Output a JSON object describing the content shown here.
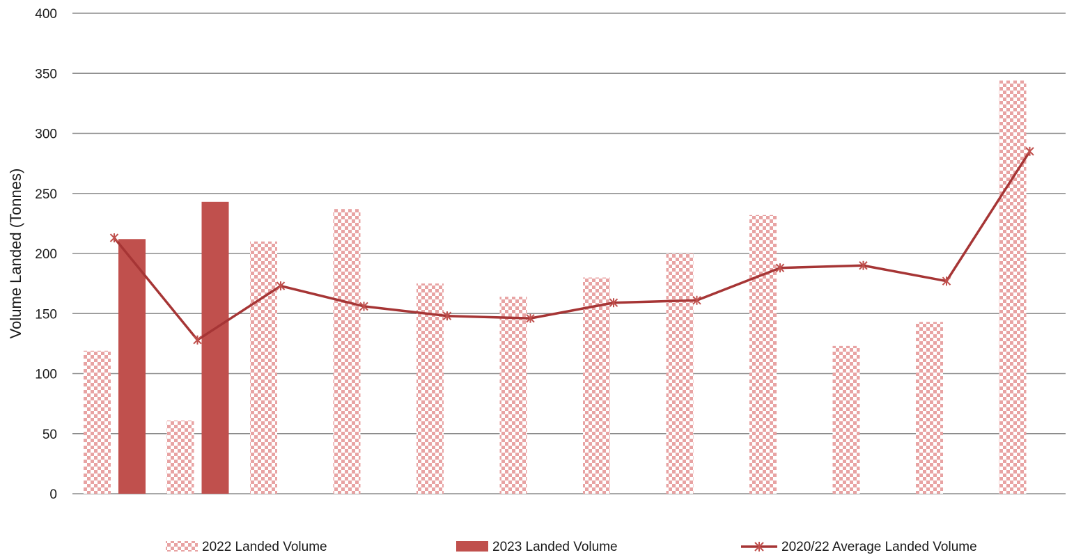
{
  "chart_data": {
    "type": "bar",
    "title": "",
    "xlabel": "",
    "ylabel": "Volume Landed (Tonnes)",
    "ylim": [
      0,
      400
    ],
    "yticks": [
      0,
      50,
      100,
      150,
      200,
      250,
      300,
      350,
      400
    ],
    "grid": true,
    "legend_position": "bottom",
    "categories": [
      "",
      "",
      "",
      "",
      "",
      "",
      "",
      "",
      "",
      "",
      "",
      ""
    ],
    "series": [
      {
        "name": "2022  Landed Volume",
        "kind": "bar",
        "pattern": "checkerboard",
        "color": "#e8a3a3",
        "values": [
          119,
          61,
          210,
          237,
          175,
          164,
          180,
          200,
          232,
          123,
          143,
          344
        ]
      },
      {
        "name": "2023 Landed Volume",
        "kind": "bar",
        "pattern": "solid",
        "color": "#c0504d",
        "values": [
          212,
          243,
          null,
          null,
          null,
          null,
          null,
          null,
          null,
          null,
          null,
          null
        ]
      },
      {
        "name": "2020/22 Average Landed Volume",
        "kind": "line",
        "marker": "asterisk",
        "color": "#a63535",
        "values": [
          213,
          128,
          173,
          156,
          148,
          146,
          159,
          161,
          188,
          190,
          177,
          285
        ]
      }
    ]
  }
}
